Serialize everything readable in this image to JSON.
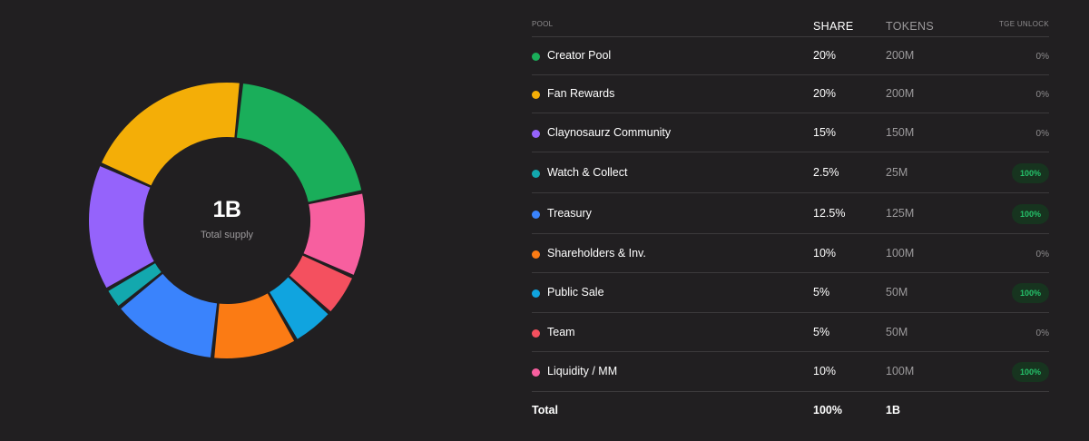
{
  "chart_data": {
    "type": "pie",
    "title": "",
    "center_value": "1B",
    "center_caption": "Total supply",
    "slices": [
      {
        "label": "Creator Pool",
        "value": 20,
        "color": "#1aae5a"
      },
      {
        "label": "Liquidity / MM",
        "value": 10,
        "color": "#f75f9f"
      },
      {
        "label": "Team",
        "value": 5,
        "color": "#f4505f"
      },
      {
        "label": "Public Sale",
        "value": 5,
        "color": "#10a4df"
      },
      {
        "label": "Shareholders & Inv.",
        "value": 10,
        "color": "#fb7b14"
      },
      {
        "label": "Treasury",
        "value": 12.5,
        "color": "#3a83fc"
      },
      {
        "label": "Watch & Collect",
        "value": 2.5,
        "color": "#13a8ae"
      },
      {
        "label": "Claynosaurz Community",
        "value": 15,
        "color": "#9563fb"
      },
      {
        "label": "Fan Rewards",
        "value": 20,
        "color": "#f4ae07"
      }
    ]
  },
  "table": {
    "headers": {
      "pool": "POOL",
      "share": "SHARE",
      "tokens": "TOKENS",
      "tge_unlock": "TGE UNLOCK"
    },
    "rows": [
      {
        "name": "Creator Pool",
        "share": "20%",
        "tokens": "200M",
        "tge_unlock": "0%",
        "unlocked": false,
        "color": "#1aae5a"
      },
      {
        "name": "Fan Rewards",
        "share": "20%",
        "tokens": "200M",
        "tge_unlock": "0%",
        "unlocked": false,
        "color": "#f4ae07"
      },
      {
        "name": "Claynosaurz Community",
        "share": "15%",
        "tokens": "150M",
        "tge_unlock": "0%",
        "unlocked": false,
        "color": "#9563fb"
      },
      {
        "name": "Watch & Collect",
        "share": "2.5%",
        "tokens": "25M",
        "tge_unlock": "100%",
        "unlocked": true,
        "color": "#13a8ae"
      },
      {
        "name": "Treasury",
        "share": "12.5%",
        "tokens": "125M",
        "tge_unlock": "100%",
        "unlocked": true,
        "color": "#3a83fc"
      },
      {
        "name": "Shareholders & Inv.",
        "share": "10%",
        "tokens": "100M",
        "tge_unlock": "0%",
        "unlocked": false,
        "color": "#fb7b14"
      },
      {
        "name": "Public Sale",
        "share": "5%",
        "tokens": "50M",
        "tge_unlock": "100%",
        "unlocked": true,
        "color": "#10a4df"
      },
      {
        "name": "Team",
        "share": "5%",
        "tokens": "50M",
        "tge_unlock": "0%",
        "unlocked": false,
        "color": "#f4505f"
      },
      {
        "name": "Liquidity / MM",
        "share": "10%",
        "tokens": "100M",
        "tge_unlock": "100%",
        "unlocked": true,
        "color": "#f75f9f"
      }
    ],
    "total": {
      "label": "Total",
      "share": "100%",
      "tokens": "1B"
    }
  }
}
